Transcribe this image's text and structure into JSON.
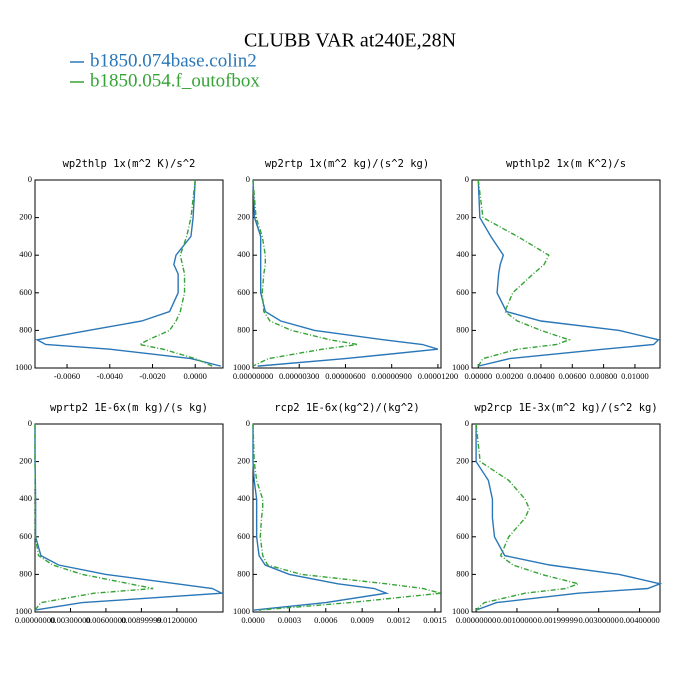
{
  "title": "CLUBB VAR at240E,28N",
  "legend": [
    {
      "name": "b1850.074base.colin2",
      "color": "#2a77b8",
      "dash": "none"
    },
    {
      "name": "b1850.054.f_outofbox",
      "color": "#36a336",
      "dash": "5 2 1 2"
    }
  ],
  "chart_data": [
    {
      "type": "line",
      "title": "wp2thlp  1x(m^2 K)/s^2",
      "y": [
        0,
        200,
        300,
        400,
        450,
        500,
        600,
        700,
        750,
        800,
        850,
        875,
        900,
        950,
        990
      ],
      "ylim": [
        0,
        1000
      ],
      "y_inverted": true,
      "yticks": [
        0,
        200,
        400,
        600,
        800,
        1000
      ],
      "xlim": [
        -0.0075,
        0.0013
      ],
      "xticks": [
        {
          "value": -0.006,
          "label": "-0.0060"
        },
        {
          "value": -0.004,
          "label": "-0.0040"
        },
        {
          "value": -0.002,
          "label": "-0.0020"
        },
        {
          "value": 0,
          "label": "0.0000"
        }
      ],
      "series": [
        {
          "values": [
            0,
            -0.0001,
            -0.0002,
            -0.0009,
            -0.001,
            -0.0008,
            -0.0008,
            -0.0012,
            -0.0025,
            -0.005,
            -0.0074,
            -0.007,
            -0.004,
            -0.0002,
            0.0012
          ]
        },
        {
          "values": [
            0,
            -0.0002,
            -0.0004,
            -0.0007,
            -0.0006,
            -0.0005,
            -0.0005,
            -0.0007,
            -0.0009,
            -0.0012,
            -0.0022,
            -0.0026,
            -0.0015,
            0.0,
            0.0008
          ]
        }
      ]
    },
    {
      "type": "line",
      "title": "wp2rtp  1x(m^2 kg)/(s^2 kg)",
      "y": [
        0,
        200,
        300,
        400,
        450,
        500,
        600,
        700,
        750,
        800,
        850,
        875,
        900,
        950,
        990
      ],
      "ylim": [
        0,
        1000
      ],
      "y_inverted": true,
      "yticks": [
        0,
        200,
        400,
        600,
        800,
        1000
      ],
      "xlim": [
        0,
        1.22e-05
      ],
      "xticks": [
        {
          "value": 0,
          "label": "0.00000000"
        },
        {
          "value": 3e-06,
          "label": "0.00000300"
        },
        {
          "value": 6e-06,
          "label": "0.00000600"
        },
        {
          "value": 9e-06,
          "label": "0.00000900"
        },
        {
          "value": 1.2e-05,
          "label": "0.00001200"
        }
      ],
      "series": [
        {
          "values": [
            0,
            1e-07,
            5e-07,
            5e-07,
            5e-07,
            5e-07,
            5e-07,
            8e-07,
            1.8e-06,
            4e-06,
            8.5e-06,
            1.1e-05,
            1.2e-05,
            6e-06,
            3e-07
          ]
        },
        {
          "values": [
            0,
            2e-07,
            6e-07,
            8e-07,
            8e-07,
            7e-07,
            6e-07,
            7e-07,
            1.1e-06,
            2.5e-06,
            5e-06,
            6.8e-06,
            4.5e-06,
            1e-06,
            0
          ]
        }
      ]
    },
    {
      "type": "line",
      "title": "wpthlp2  1x(m K^2)/s",
      "y": [
        0,
        200,
        300,
        400,
        450,
        500,
        600,
        700,
        750,
        800,
        850,
        875,
        900,
        950,
        990
      ],
      "ylim": [
        0,
        1000
      ],
      "y_inverted": true,
      "yticks": [
        0,
        200,
        400,
        600,
        800,
        1000
      ],
      "xlim": [
        -0.0004,
        0.0116
      ],
      "xticks": [
        {
          "value": 0,
          "label": "0.00000"
        },
        {
          "value": 0.002,
          "label": "0.00200"
        },
        {
          "value": 0.004,
          "label": "0.00400"
        },
        {
          "value": 0.006,
          "label": "0.00600"
        },
        {
          "value": 0.008,
          "label": "0.00800"
        },
        {
          "value": 0.01,
          "label": "0.01000"
        }
      ],
      "series": [
        {
          "values": [
            0,
            0.0001,
            0.0008,
            0.0016,
            0.0014,
            0.0013,
            0.0012,
            0.0018,
            0.004,
            0.009,
            0.0115,
            0.0112,
            0.008,
            0.002,
            0
          ]
        },
        {
          "values": [
            0,
            0.0003,
            0.0025,
            0.0045,
            0.0042,
            0.0035,
            0.0022,
            0.0017,
            0.0025,
            0.004,
            0.0058,
            0.005,
            0.0025,
            0.0003,
            0
          ]
        }
      ]
    },
    {
      "type": "line",
      "title": "wprtp2  1E-6x(m kg)/(s kg)",
      "y": [
        0,
        200,
        300,
        400,
        450,
        500,
        600,
        700,
        750,
        800,
        850,
        875,
        900,
        950,
        990
      ],
      "ylim": [
        0,
        1000
      ],
      "y_inverted": true,
      "yticks": [
        0,
        200,
        400,
        600,
        800,
        1000
      ],
      "xlim": [
        0,
        0.0159
      ],
      "xticks": [
        {
          "value": 0,
          "label": "0.00000000"
        },
        {
          "value": 0.003,
          "label": "0.00300000"
        },
        {
          "value": 0.006,
          "label": "0.00600000"
        },
        {
          "value": 0.009,
          "label": "0.00899999"
        },
        {
          "value": 0.012,
          "label": "0.01200000"
        }
      ],
      "series": [
        {
          "values": [
            0,
            0,
            3e-05,
            5e-05,
            5e-05,
            5e-05,
            5e-05,
            0.0005,
            0.002,
            0.006,
            0.012,
            0.015,
            0.0158,
            0.004,
            0
          ]
        },
        {
          "values": [
            0,
            0,
            2e-05,
            3e-05,
            3e-05,
            3e-05,
            4e-05,
            0.0003,
            0.0015,
            0.004,
            0.008,
            0.01,
            0.005,
            0.0005,
            0
          ]
        }
      ]
    },
    {
      "type": "line",
      "title": "rcp2  1E-6x(kg^2)/(kg^2)",
      "y": [
        0,
        200,
        300,
        400,
        450,
        500,
        600,
        700,
        750,
        800,
        850,
        875,
        900,
        950,
        990
      ],
      "ylim": [
        0,
        1000
      ],
      "y_inverted": true,
      "yticks": [
        0,
        200,
        400,
        600,
        800,
        1000
      ],
      "xlim": [
        0,
        0.00155
      ],
      "xticks": [
        {
          "value": 0,
          "label": "0.0000"
        },
        {
          "value": 0.0003,
          "label": "0.0003"
        },
        {
          "value": 0.0006,
          "label": "0.0006"
        },
        {
          "value": 0.0009,
          "label": "0.0009"
        },
        {
          "value": 0.0012,
          "label": "0.0012"
        },
        {
          "value": 0.0015,
          "label": "0.0015"
        }
      ],
      "series": [
        {
          "values": [
            0,
            0,
            1e-05,
            3e-05,
            3e-05,
            3e-05,
            3e-05,
            5e-05,
            0.0001,
            0.0003,
            0.0007,
            0.001,
            0.0011,
            0.0006,
            0
          ]
        },
        {
          "values": [
            0,
            1e-05,
            3e-05,
            8e-05,
            8e-05,
            7e-05,
            6e-05,
            8e-05,
            0.00012,
            0.0004,
            0.0011,
            0.0014,
            0.00155,
            0.0008,
            5e-05
          ]
        }
      ]
    },
    {
      "type": "line",
      "title": "wp2rcp  1E-3x(m^2 kg)/(s^2 kg)",
      "y": [
        0,
        200,
        300,
        400,
        450,
        500,
        600,
        700,
        750,
        800,
        850,
        875,
        900,
        950,
        990
      ],
      "ylim": [
        0,
        1000
      ],
      "y_inverted": true,
      "yticks": [
        0,
        200,
        400,
        600,
        800,
        1000
      ],
      "xlim": [
        -0.0001,
        0.0045
      ],
      "xticks": [
        {
          "value": 0,
          "label": "0.00000000"
        },
        {
          "value": 0.001,
          "label": "0.00100000"
        },
        {
          "value": 0.002,
          "label": "0.00199999"
        },
        {
          "value": 0.003,
          "label": "0.00300000"
        },
        {
          "value": 0.004,
          "label": "0.00400000"
        }
      ],
      "series": [
        {
          "values": [
            0,
            0,
            0.0003,
            0.0004,
            0.0004,
            0.0004,
            0.00045,
            0.0007,
            0.0018,
            0.0035,
            0.0045,
            0.0042,
            0.0025,
            0.0005,
            0
          ]
        },
        {
          "values": [
            0,
            0.0001,
            0.0008,
            0.0012,
            0.0013,
            0.0012,
            0.0008,
            0.0006,
            0.0009,
            0.0016,
            0.0025,
            0.0022,
            0.0012,
            0.0002,
            0
          ]
        }
      ]
    }
  ]
}
